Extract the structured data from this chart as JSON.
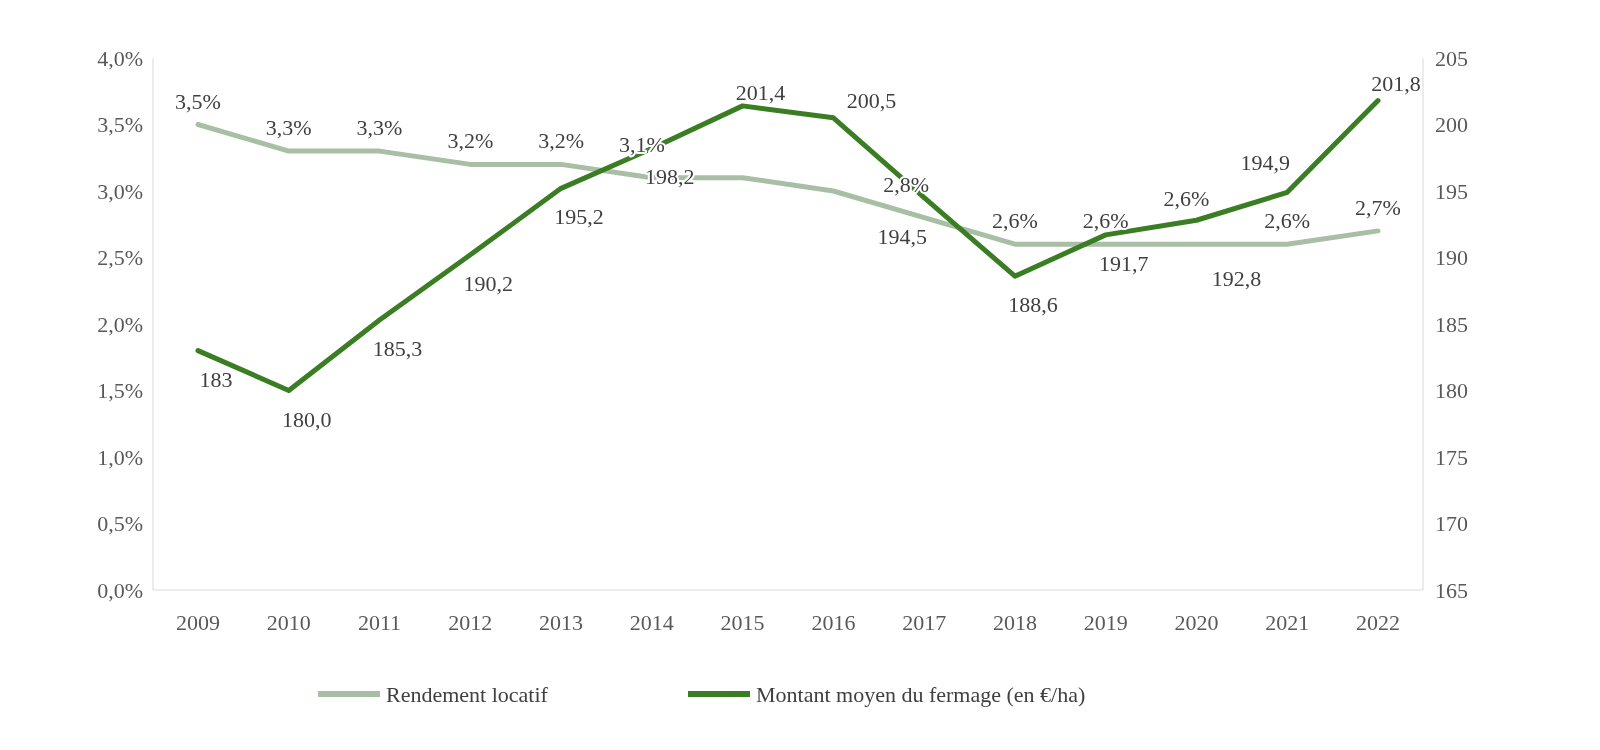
{
  "chart_data": {
    "type": "line",
    "categories": [
      "2009",
      "2010",
      "2011",
      "2012",
      "2013",
      "2014",
      "2015",
      "2016",
      "2017",
      "2018",
      "2019",
      "2020",
      "2021",
      "2022"
    ],
    "series": [
      {
        "name": "Rendement locatif",
        "color": "#a9bfa5",
        "values": [
          3.5,
          3.3,
          3.3,
          3.2,
          3.2,
          3.1,
          3.1,
          3.0,
          2.8,
          2.6,
          2.6,
          2.6,
          2.6,
          2.7
        ],
        "value_labels": [
          "3,5%",
          "3,3%",
          "3,3%",
          "3,2%",
          "3,2%",
          "3,1%",
          null,
          null,
          "2,8%",
          "2,6%",
          "2,6%",
          "2,6%",
          "2,6%",
          "2,7%"
        ]
      },
      {
        "name": "Montant moyen du fermage (en €/ha)",
        "color": "#3a7d23",
        "axis": "y2",
        "values": [
          183,
          180.0,
          185.3,
          190.2,
          195.2,
          198.2,
          201.4,
          200.5,
          194.5,
          188.6,
          191.7,
          192.8,
          194.9,
          201.8
        ],
        "value_labels": [
          "183",
          "180,0",
          "185,3",
          "190,2",
          "195,2",
          "198,2",
          "201,4",
          "200,5",
          "194,5",
          "188,6",
          "191,7",
          "192,8",
          "194,9",
          "201,8"
        ]
      }
    ],
    "ylim": [
      0,
      4
    ],
    "yticks": [
      {
        "value": 0,
        "label": "0,0%"
      },
      {
        "value": 0.5,
        "label": "0,5%"
      },
      {
        "value": 1,
        "label": "1,0%"
      },
      {
        "value": 1.5,
        "label": "1,5%"
      },
      {
        "value": 2,
        "label": "2,0%"
      },
      {
        "value": 2.5,
        "label": "2,5%"
      },
      {
        "value": 3,
        "label": "3,0%"
      },
      {
        "value": 3.5,
        "label": "3,5%"
      },
      {
        "value": 4,
        "label": "4,0%"
      }
    ],
    "y2lim": [
      165,
      205
    ],
    "y2ticks": [
      165,
      170,
      175,
      180,
      185,
      190,
      195,
      200,
      205
    ],
    "legend": "bottom",
    "marker": "none",
    "line_style": "solid"
  }
}
